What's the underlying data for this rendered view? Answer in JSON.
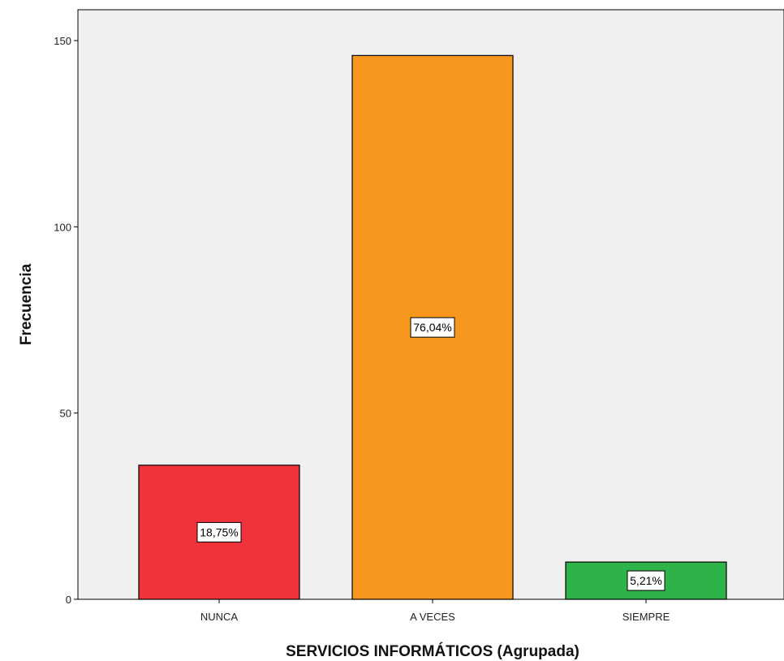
{
  "chart_data": {
    "type": "bar",
    "xlabel": "SERVICIOS INFORMÁTICOS (Agrupada)",
    "ylabel": "Frecuencia",
    "categories": [
      "NUNCA",
      "A VECES",
      "SIEMPRE"
    ],
    "values": [
      36,
      146,
      10
    ],
    "data_labels": [
      "18,75%",
      "76,04%",
      "5,21%"
    ],
    "colors": [
      "#f0323a",
      "#f7971e",
      "#2db34a"
    ],
    "ylim": [
      0,
      158
    ],
    "yticks": [
      0,
      50,
      100,
      150
    ],
    "ytick_labels": [
      "0",
      "50",
      "100",
      "150"
    ],
    "grid": false,
    "plot_background": "#f0f0f0"
  }
}
